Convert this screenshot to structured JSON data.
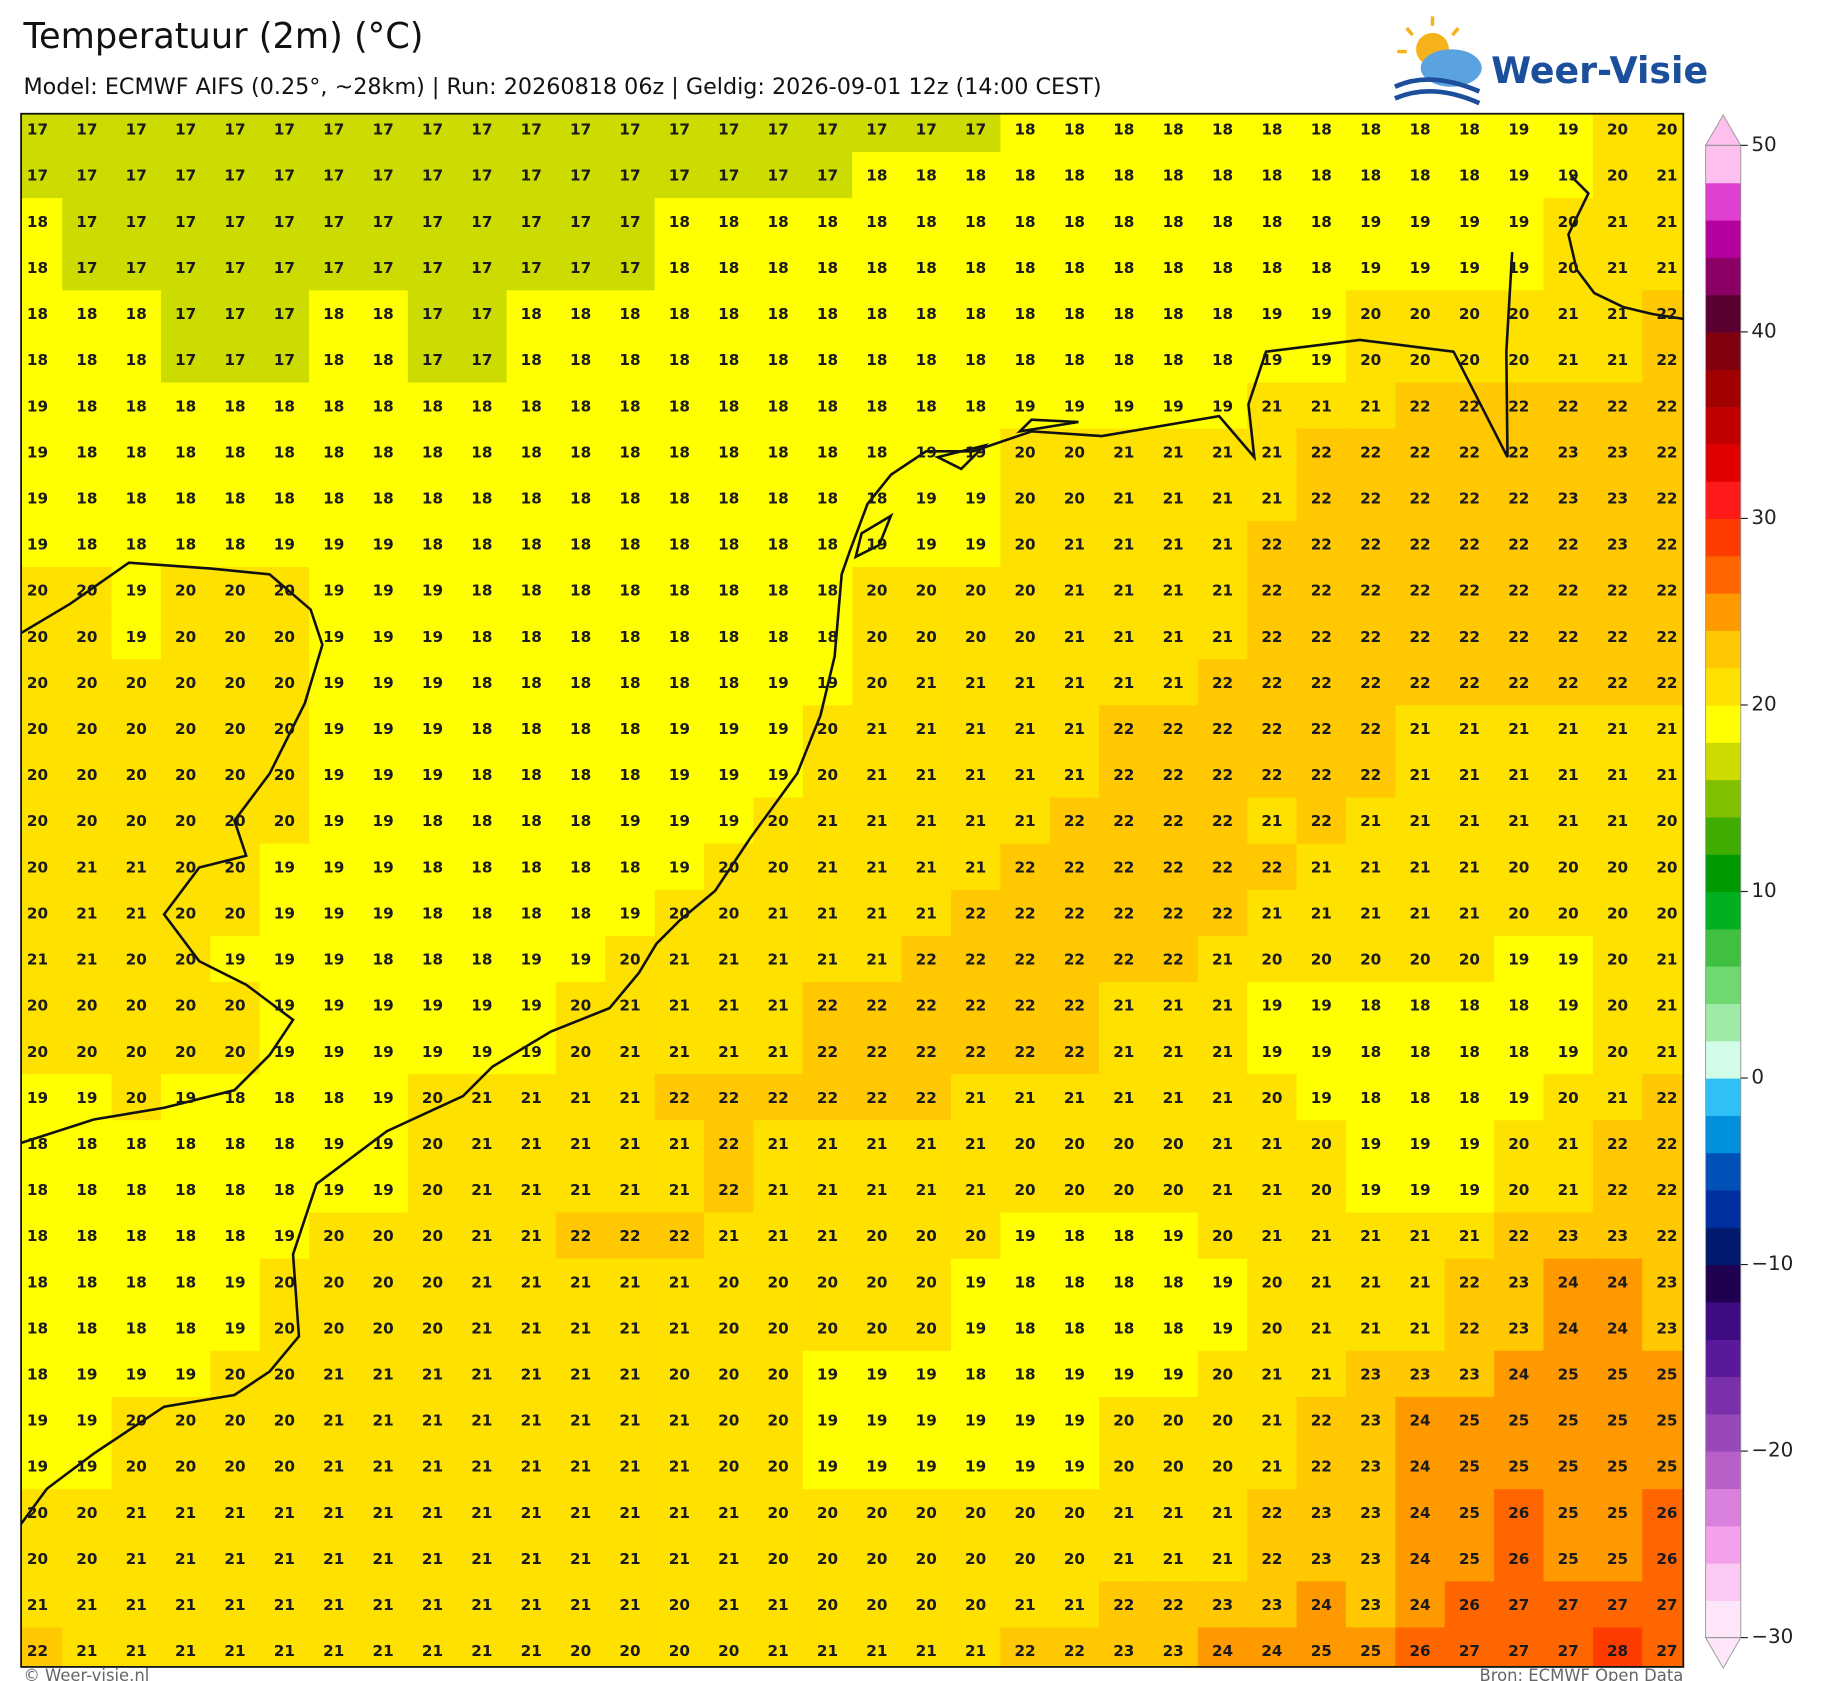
{
  "chart_data": {
    "type": "heatmap",
    "title": "Temperatuur (2m) (°C)",
    "subtitle": "Model: ECMWF AIFS (0.25°, ~28km)  |  Run: 20260818 06z  |  Geldig: 2026-09-01 12z (14:00 CEST)",
    "brand": "Weer-Visie",
    "credit": "© Weer-visie.nl",
    "source": "Bron: ECMWF Open Data",
    "values": [
      [
        17,
        17,
        17,
        17,
        17,
        17,
        17,
        17,
        17,
        17,
        17,
        17,
        17,
        17,
        17,
        17,
        17,
        17,
        17,
        17,
        18,
        18,
        18,
        18,
        18,
        18,
        18,
        18,
        18,
        18,
        19,
        19,
        20,
        20
      ],
      [
        17,
        17,
        17,
        17,
        17,
        17,
        17,
        17,
        17,
        17,
        17,
        17,
        17,
        17,
        17,
        17,
        17,
        18,
        18,
        18,
        18,
        18,
        18,
        18,
        18,
        18,
        18,
        18,
        18,
        18,
        19,
        19,
        20,
        21
      ],
      [
        18,
        17,
        17,
        17,
        17,
        17,
        17,
        17,
        17,
        17,
        17,
        17,
        17,
        18,
        18,
        18,
        18,
        18,
        18,
        18,
        18,
        18,
        18,
        18,
        18,
        18,
        18,
        19,
        19,
        19,
        19,
        20,
        21,
        21
      ],
      [
        18,
        17,
        17,
        17,
        17,
        17,
        17,
        17,
        17,
        17,
        17,
        17,
        17,
        18,
        18,
        18,
        18,
        18,
        18,
        18,
        18,
        18,
        18,
        18,
        18,
        18,
        18,
        19,
        19,
        19,
        19,
        20,
        21,
        21
      ],
      [
        18,
        18,
        18,
        17,
        17,
        17,
        18,
        18,
        17,
        17,
        18,
        18,
        18,
        18,
        18,
        18,
        18,
        18,
        18,
        18,
        18,
        18,
        18,
        18,
        18,
        19,
        19,
        20,
        20,
        20,
        20,
        21,
        21,
        22
      ],
      [
        18,
        18,
        18,
        17,
        17,
        17,
        18,
        18,
        17,
        17,
        18,
        18,
        18,
        18,
        18,
        18,
        18,
        18,
        18,
        18,
        18,
        18,
        18,
        18,
        18,
        19,
        19,
        20,
        20,
        20,
        20,
        21,
        21,
        22
      ],
      [
        19,
        18,
        18,
        18,
        18,
        18,
        18,
        18,
        18,
        18,
        18,
        18,
        18,
        18,
        18,
        18,
        18,
        18,
        18,
        18,
        19,
        19,
        19,
        19,
        19,
        21,
        21,
        21,
        22,
        22,
        22,
        22,
        22,
        22
      ],
      [
        19,
        18,
        18,
        18,
        18,
        18,
        18,
        18,
        18,
        18,
        18,
        18,
        18,
        18,
        18,
        18,
        18,
        18,
        19,
        19,
        20,
        20,
        21,
        21,
        21,
        21,
        22,
        22,
        22,
        22,
        22,
        23,
        23,
        22
      ],
      [
        19,
        18,
        18,
        18,
        18,
        18,
        18,
        18,
        18,
        18,
        18,
        18,
        18,
        18,
        18,
        18,
        18,
        18,
        19,
        19,
        20,
        20,
        21,
        21,
        21,
        21,
        22,
        22,
        22,
        22,
        22,
        23,
        23,
        22
      ],
      [
        19,
        18,
        18,
        18,
        18,
        19,
        19,
        19,
        18,
        18,
        18,
        18,
        18,
        18,
        18,
        18,
        18,
        19,
        19,
        19,
        20,
        21,
        21,
        21,
        21,
        22,
        22,
        22,
        22,
        22,
        22,
        22,
        23,
        22
      ],
      [
        20,
        20,
        19,
        20,
        20,
        20,
        19,
        19,
        19,
        18,
        18,
        18,
        18,
        18,
        18,
        18,
        18,
        20,
        20,
        20,
        20,
        21,
        21,
        21,
        21,
        22,
        22,
        22,
        22,
        22,
        22,
        22,
        22,
        22
      ],
      [
        20,
        20,
        19,
        20,
        20,
        20,
        19,
        19,
        19,
        18,
        18,
        18,
        18,
        18,
        18,
        18,
        18,
        20,
        20,
        20,
        20,
        21,
        21,
        21,
        21,
        22,
        22,
        22,
        22,
        22,
        22,
        22,
        22,
        22
      ],
      [
        20,
        20,
        20,
        20,
        20,
        20,
        19,
        19,
        19,
        18,
        18,
        18,
        18,
        18,
        18,
        19,
        19,
        20,
        21,
        21,
        21,
        21,
        21,
        21,
        22,
        22,
        22,
        22,
        22,
        22,
        22,
        22,
        22,
        22
      ],
      [
        20,
        20,
        20,
        20,
        20,
        20,
        19,
        19,
        19,
        18,
        18,
        18,
        18,
        19,
        19,
        19,
        20,
        21,
        21,
        21,
        21,
        21,
        22,
        22,
        22,
        22,
        22,
        22,
        21,
        21,
        21,
        21,
        21,
        21
      ],
      [
        20,
        20,
        20,
        20,
        20,
        20,
        19,
        19,
        19,
        18,
        18,
        18,
        18,
        19,
        19,
        19,
        20,
        21,
        21,
        21,
        21,
        21,
        22,
        22,
        22,
        22,
        22,
        22,
        21,
        21,
        21,
        21,
        21,
        21
      ],
      [
        20,
        20,
        20,
        20,
        20,
        20,
        19,
        19,
        18,
        18,
        18,
        18,
        19,
        19,
        19,
        20,
        21,
        21,
        21,
        21,
        21,
        22,
        22,
        22,
        22,
        21,
        22,
        21,
        21,
        21,
        21,
        21,
        21,
        20
      ],
      [
        20,
        21,
        21,
        20,
        20,
        19,
        19,
        19,
        18,
        18,
        18,
        18,
        18,
        19,
        20,
        20,
        21,
        21,
        21,
        21,
        22,
        22,
        22,
        22,
        22,
        22,
        21,
        21,
        21,
        21,
        20,
        20,
        20,
        20
      ],
      [
        20,
        21,
        21,
        20,
        20,
        19,
        19,
        19,
        18,
        18,
        18,
        18,
        19,
        20,
        20,
        21,
        21,
        21,
        21,
        22,
        22,
        22,
        22,
        22,
        22,
        21,
        21,
        21,
        21,
        21,
        20,
        20,
        20,
        20
      ],
      [
        21,
        21,
        20,
        20,
        19,
        19,
        19,
        18,
        18,
        18,
        19,
        19,
        20,
        21,
        21,
        21,
        21,
        21,
        22,
        22,
        22,
        22,
        22,
        22,
        21,
        20,
        20,
        20,
        20,
        20,
        19,
        19,
        20,
        21
      ],
      [
        20,
        20,
        20,
        20,
        20,
        19,
        19,
        19,
        19,
        19,
        19,
        20,
        21,
        21,
        21,
        21,
        22,
        22,
        22,
        22,
        22,
        22,
        21,
        21,
        21,
        19,
        19,
        18,
        18,
        18,
        18,
        19,
        20,
        21
      ],
      [
        20,
        20,
        20,
        20,
        20,
        19,
        19,
        19,
        19,
        19,
        19,
        20,
        21,
        21,
        21,
        21,
        22,
        22,
        22,
        22,
        22,
        22,
        21,
        21,
        21,
        19,
        19,
        18,
        18,
        18,
        18,
        19,
        20,
        21
      ],
      [
        19,
        19,
        20,
        19,
        18,
        18,
        18,
        19,
        20,
        21,
        21,
        21,
        21,
        22,
        22,
        22,
        22,
        22,
        22,
        21,
        21,
        21,
        21,
        21,
        21,
        20,
        19,
        18,
        18,
        18,
        19,
        20,
        21,
        22
      ],
      [
        18,
        18,
        18,
        18,
        18,
        18,
        19,
        19,
        20,
        21,
        21,
        21,
        21,
        21,
        22,
        21,
        21,
        21,
        21,
        21,
        20,
        20,
        20,
        20,
        21,
        21,
        20,
        19,
        19,
        19,
        20,
        21,
        22,
        22
      ],
      [
        18,
        18,
        18,
        18,
        18,
        18,
        19,
        19,
        20,
        21,
        21,
        21,
        21,
        21,
        22,
        21,
        21,
        21,
        21,
        21,
        20,
        20,
        20,
        20,
        21,
        21,
        20,
        19,
        19,
        19,
        20,
        21,
        22,
        22
      ],
      [
        18,
        18,
        18,
        18,
        18,
        19,
        20,
        20,
        20,
        21,
        21,
        22,
        22,
        22,
        21,
        21,
        21,
        20,
        20,
        20,
        19,
        18,
        18,
        19,
        20,
        21,
        21,
        21,
        21,
        21,
        22,
        23,
        23,
        22
      ],
      [
        18,
        18,
        18,
        18,
        19,
        20,
        20,
        20,
        20,
        21,
        21,
        21,
        21,
        21,
        20,
        20,
        20,
        20,
        20,
        19,
        18,
        18,
        18,
        18,
        19,
        20,
        21,
        21,
        21,
        22,
        23,
        24,
        24,
        23
      ],
      [
        18,
        18,
        18,
        18,
        19,
        20,
        20,
        20,
        20,
        21,
        21,
        21,
        21,
        21,
        20,
        20,
        20,
        20,
        20,
        19,
        18,
        18,
        18,
        18,
        19,
        20,
        21,
        21,
        21,
        22,
        23,
        24,
        24,
        23
      ],
      [
        18,
        19,
        19,
        19,
        20,
        20,
        21,
        21,
        21,
        21,
        21,
        21,
        21,
        20,
        20,
        20,
        19,
        19,
        19,
        18,
        18,
        19,
        19,
        19,
        20,
        21,
        21,
        23,
        23,
        23,
        24,
        25,
        25,
        25
      ],
      [
        19,
        19,
        20,
        20,
        20,
        20,
        21,
        21,
        21,
        21,
        21,
        21,
        21,
        21,
        20,
        20,
        19,
        19,
        19,
        19,
        19,
        19,
        20,
        20,
        20,
        21,
        22,
        23,
        24,
        25,
        25,
        25,
        25,
        25
      ],
      [
        19,
        19,
        20,
        20,
        20,
        20,
        21,
        21,
        21,
        21,
        21,
        21,
        21,
        21,
        20,
        20,
        19,
        19,
        19,
        19,
        19,
        19,
        20,
        20,
        20,
        21,
        22,
        23,
        24,
        25,
        25,
        25,
        25,
        25
      ],
      [
        20,
        20,
        21,
        21,
        21,
        21,
        21,
        21,
        21,
        21,
        21,
        21,
        21,
        21,
        21,
        20,
        20,
        20,
        20,
        20,
        20,
        20,
        21,
        21,
        21,
        22,
        23,
        23,
        24,
        25,
        26,
        25,
        25,
        26
      ],
      [
        20,
        20,
        21,
        21,
        21,
        21,
        21,
        21,
        21,
        21,
        21,
        21,
        21,
        21,
        21,
        20,
        20,
        20,
        20,
        20,
        20,
        20,
        21,
        21,
        21,
        22,
        23,
        23,
        24,
        25,
        26,
        25,
        25,
        26
      ],
      [
        21,
        21,
        21,
        21,
        21,
        21,
        21,
        21,
        21,
        21,
        21,
        21,
        21,
        20,
        21,
        21,
        20,
        20,
        20,
        20,
        21,
        21,
        22,
        22,
        23,
        23,
        24,
        23,
        24,
        26,
        27,
        27,
        27,
        27
      ],
      [
        22,
        21,
        21,
        21,
        21,
        21,
        21,
        21,
        21,
        21,
        21,
        20,
        20,
        20,
        20,
        21,
        21,
        21,
        21,
        21,
        22,
        22,
        23,
        23,
        24,
        24,
        25,
        25,
        26,
        27,
        27,
        27,
        28,
        27
      ]
    ],
    "clim": [
      -30,
      50
    ],
    "colorbar_ticks": [
      50,
      40,
      30,
      20,
      10,
      0,
      {
        "value": -10,
        "label": "−10"
      },
      {
        "value": -20,
        "label": "−20"
      },
      {
        "value": -30,
        "label": "−30"
      }
    ],
    "colors": [
      "#fee6fa",
      "#fcc8f4",
      "#f4a0ea",
      "#d880dc",
      "#b860c8",
      "#9848b8",
      "#7a30aa",
      "#5a189a",
      "#3c0c80",
      "#200050",
      "#001a6e",
      "#0030a0",
      "#0050b8",
      "#0090dc",
      "#30c0f8",
      "#d0fce8",
      "#a0eaa8",
      "#70d870",
      "#40c040",
      "#00b020",
      "#009a00",
      "#40ac00",
      "#80c000",
      "#cddc00",
      "#ffff00",
      "#ffe100",
      "#ffc800",
      "#ff9900",
      "#ff6600",
      "#ff3c00",
      "#ff1a1a",
      "#e00000",
      "#c00000",
      "#a00000",
      "#800010",
      "#5a0030",
      "#8c0066",
      "#b4009c",
      "#e040d0",
      "#fcbfee"
    ]
  }
}
